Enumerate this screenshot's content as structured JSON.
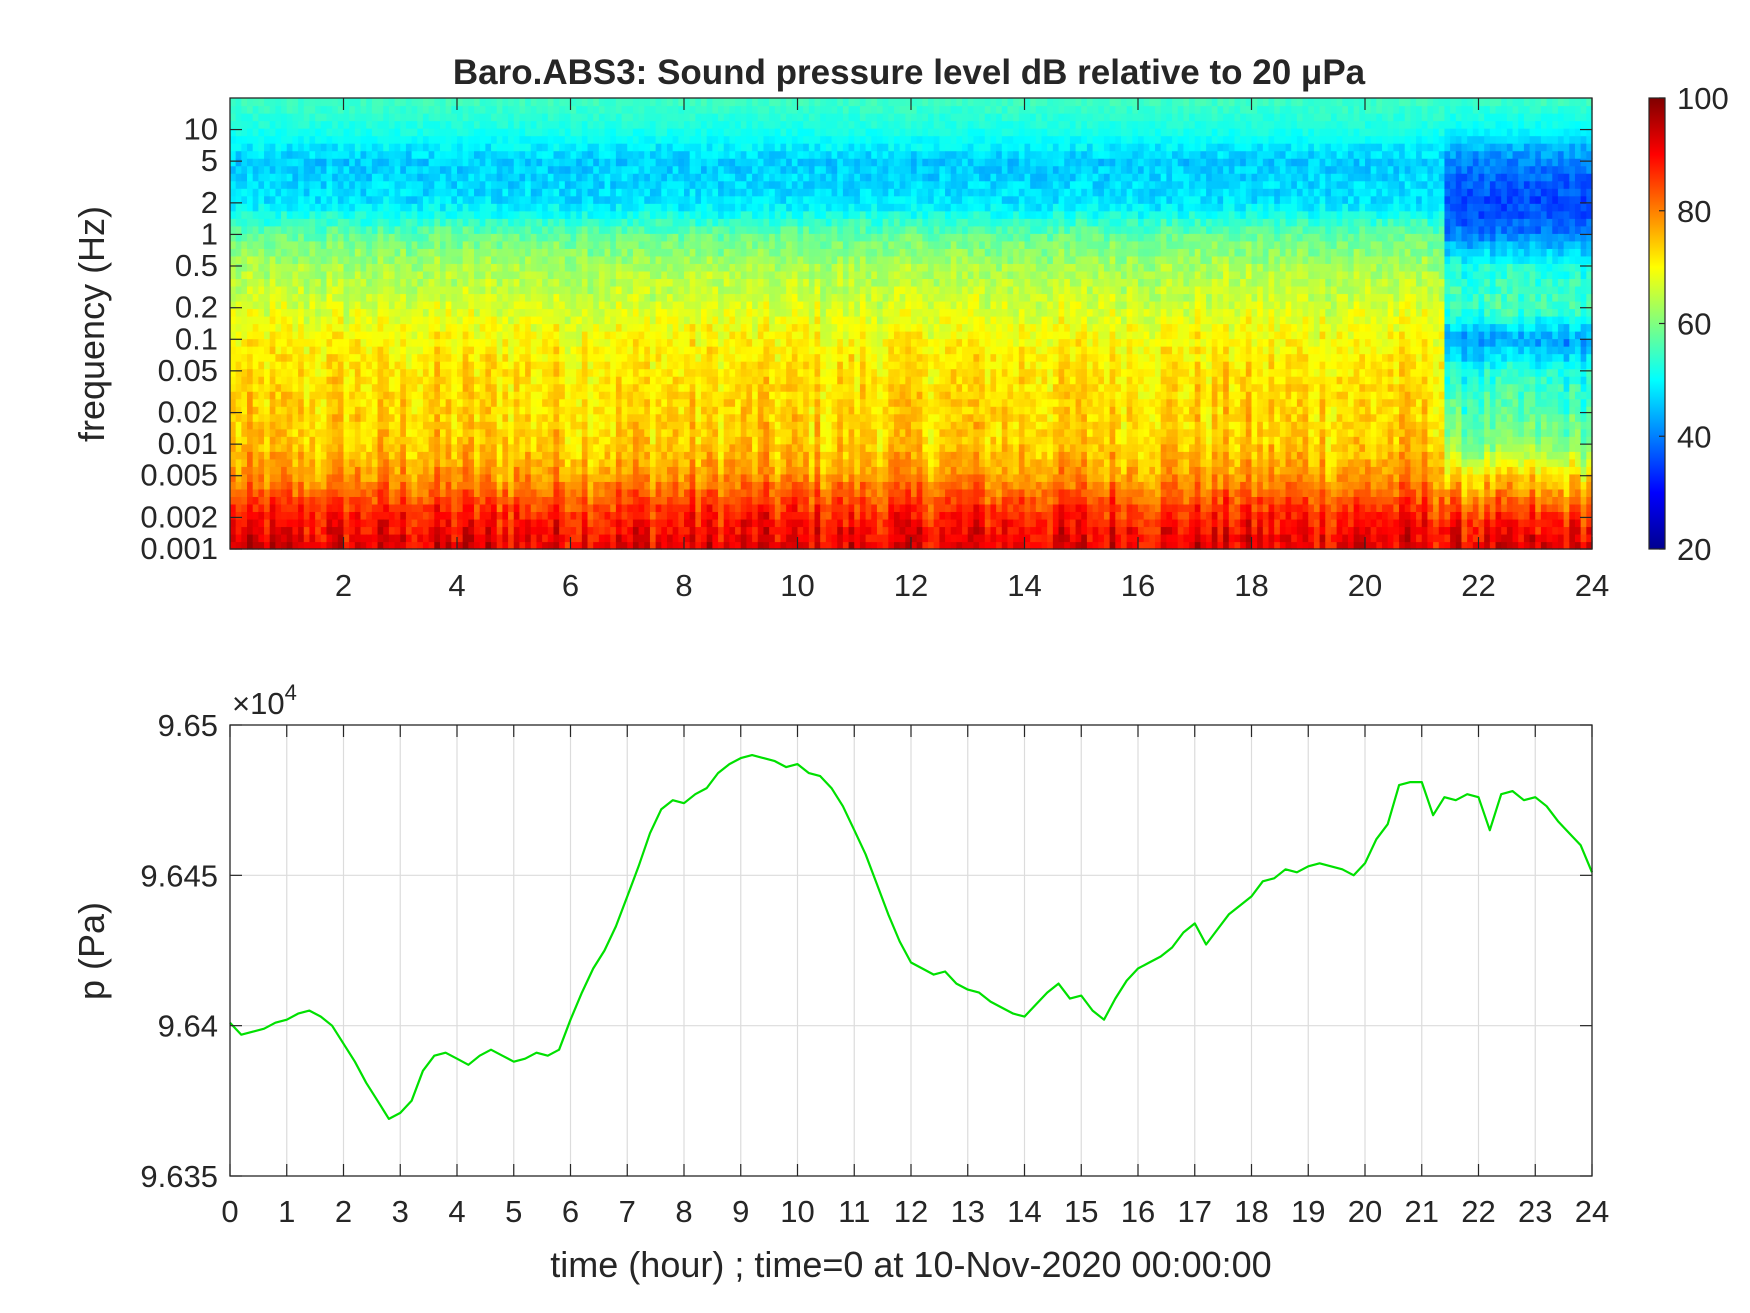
{
  "figure": {
    "spectrogram": {
      "title": "Baro.ABS3: Sound pressure level dB relative to 20 μPa",
      "ylabel": "frequency (Hz)"
    },
    "pressure": {
      "ylabel": "p (Pa)",
      "xlabel": "time (hour) ; time=0 at 10-Nov-2020 00:00:00",
      "exponent_prefix": "×10",
      "exponent_power": "4"
    }
  },
  "chart_data": [
    {
      "type": "heatmap",
      "title": "Baro.ABS3: Sound pressure level dB relative to 20 μPa",
      "ylabel": "frequency (Hz)",
      "xlabel": "",
      "xlim": [
        0,
        24
      ],
      "ylim": [
        0.001,
        20
      ],
      "yscale": "log",
      "x_ticks": [
        2,
        4,
        6,
        8,
        10,
        12,
        14,
        16,
        18,
        20,
        22,
        24
      ],
      "y_ticks": [
        0.001,
        0.002,
        0.005,
        0.01,
        0.02,
        0.05,
        0.1,
        0.2,
        0.5,
        1,
        2,
        5,
        10
      ],
      "y_tick_labels": [
        "0.001",
        "0.002",
        "0.005",
        "0.01",
        "0.02",
        "0.05",
        "0.1",
        "0.2",
        "0.5",
        "1",
        "2",
        "5",
        "10"
      ],
      "colorbar": {
        "label": "",
        "range": [
          20,
          100
        ],
        "ticks": [
          20,
          40,
          60,
          80,
          100
        ],
        "colormap": "jet"
      },
      "grid": false,
      "profile_freq": [
        0.001,
        0.002,
        0.005,
        0.01,
        0.02,
        0.05,
        0.1,
        0.2,
        0.5,
        1,
        2,
        5,
        10,
        20
      ],
      "profile_level_db": [
        92,
        88,
        78,
        74,
        73,
        72,
        70,
        67,
        63,
        58,
        48,
        46,
        52,
        55
      ],
      "late_profile_time_from": 21.4,
      "late_profile_level_db": [
        92,
        86,
        72,
        60,
        56,
        52,
        42,
        55,
        52,
        40,
        35,
        40,
        50,
        55
      ]
    },
    {
      "type": "line",
      "title": "",
      "xlabel": "time (hour) ; time=0 at 10-Nov-2020 00:00:00",
      "ylabel": "p (Pa)",
      "xlim": [
        0,
        24
      ],
      "ylim": [
        96350,
        96500
      ],
      "x_ticks": [
        0,
        1,
        2,
        3,
        4,
        5,
        6,
        7,
        8,
        9,
        10,
        11,
        12,
        13,
        14,
        15,
        16,
        17,
        18,
        19,
        20,
        21,
        22,
        23,
        24
      ],
      "y_ticks": [
        96350,
        96400,
        96450,
        96500
      ],
      "y_tick_labels": [
        "9.635",
        "9.64",
        "9.645",
        "9.65"
      ],
      "grid": true,
      "line_color": "#00e000",
      "series": [
        {
          "x": [
            0,
            0.2,
            0.4,
            0.6,
            0.8,
            1.0,
            1.2,
            1.4,
            1.6,
            1.8,
            2.0,
            2.2,
            2.4,
            2.6,
            2.8,
            3.0,
            3.2,
            3.4,
            3.6,
            3.8,
            4.0,
            4.2,
            4.4,
            4.6,
            4.8,
            5.0,
            5.2,
            5.4,
            5.6,
            5.8,
            6.0,
            6.2,
            6.4,
            6.6,
            6.8,
            7.0,
            7.2,
            7.4,
            7.6,
            7.8,
            8.0,
            8.2,
            8.4,
            8.6,
            8.8,
            9.0,
            9.2,
            9.4,
            9.6,
            9.8,
            10.0,
            10.2,
            10.4,
            10.6,
            10.8,
            11.0,
            11.2,
            11.4,
            11.6,
            11.8,
            12.0,
            12.2,
            12.4,
            12.6,
            12.8,
            13.0,
            13.2,
            13.4,
            13.6,
            13.8,
            14.0,
            14.2,
            14.4,
            14.6,
            14.8,
            15.0,
            15.2,
            15.4,
            15.6,
            15.8,
            16.0,
            16.2,
            16.4,
            16.6,
            16.8,
            17.0,
            17.2,
            17.4,
            17.6,
            17.8,
            18.0,
            18.2,
            18.4,
            18.6,
            18.8,
            19.0,
            19.2,
            19.4,
            19.6,
            19.8,
            20.0,
            20.2,
            20.4,
            20.6,
            20.8,
            21.0,
            21.2,
            21.4,
            21.6,
            21.8,
            22.0,
            22.2,
            22.4,
            22.6,
            22.8,
            23.0,
            23.2,
            23.4,
            23.6,
            23.8,
            24.0
          ],
          "y": [
            96401,
            96397,
            96398,
            96399,
            96401,
            96402,
            96404,
            96405,
            96403,
            96400,
            96394,
            96388,
            96381,
            96375,
            96369,
            96371,
            96375,
            96385,
            96390,
            96391,
            96389,
            96387,
            96390,
            96392,
            96390,
            96388,
            96389,
            96391,
            96390,
            96392,
            96402,
            96411,
            96419,
            96425,
            96433,
            96443,
            96453,
            96464,
            96472,
            96475,
            96474,
            96477,
            96479,
            96484,
            96487,
            96489,
            96490,
            96489,
            96488,
            96486,
            96487,
            96484,
            96483,
            96479,
            96473,
            96465,
            96457,
            96447,
            96437,
            96428,
            96421,
            96419,
            96417,
            96418,
            96414,
            96412,
            96411,
            96408,
            96406,
            96404,
            96403,
            96407,
            96411,
            96414,
            96409,
            96410,
            96405,
            96402,
            96409,
            96415,
            96419,
            96421,
            96423,
            96426,
            96431,
            96434,
            96427,
            96432,
            96437,
            96440,
            96443,
            96448,
            96449,
            96452,
            96451,
            96453,
            96454,
            96453,
            96452,
            96450,
            96454,
            96462,
            96467,
            96480,
            96481,
            96481,
            96470,
            96476,
            96475,
            96477,
            96476,
            96465,
            96477,
            96478,
            96475,
            96476,
            96473,
            96468,
            96464,
            96460,
            96451
          ]
        }
      ]
    }
  ]
}
